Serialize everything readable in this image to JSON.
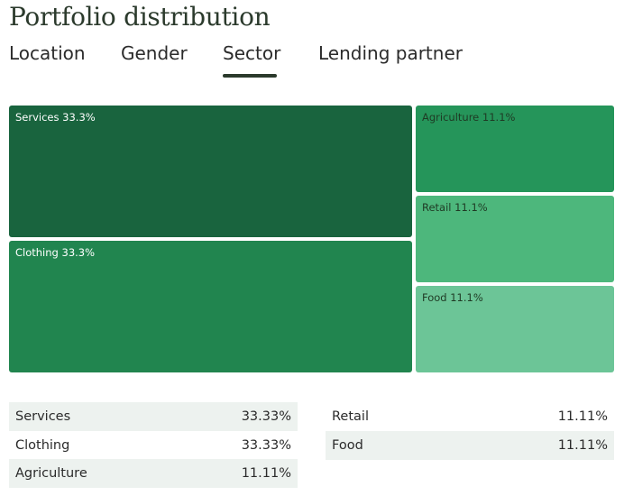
{
  "page": {
    "title": "Portfolio distribution"
  },
  "tabs": [
    {
      "label": "Location",
      "active": false
    },
    {
      "label": "Gender",
      "active": false
    },
    {
      "label": "Sector",
      "active": true
    },
    {
      "label": "Lending partner",
      "active": false
    }
  ],
  "chart_data": {
    "type": "treemap",
    "title": "Portfolio distribution",
    "categories": [
      "Services",
      "Clothing",
      "Agriculture",
      "Retail",
      "Food"
    ],
    "values": [
      33.3,
      33.3,
      11.1,
      11.1,
      11.1
    ],
    "labels": [
      "Services 33.3%",
      "Clothing 33.3%",
      "Agriculture 11.1%",
      "Retail 11.1%",
      "Food 11.1%"
    ],
    "colors": [
      "#19643e",
      "#21854f",
      "#25955a",
      "#4db77c",
      "#6cc597"
    ]
  },
  "table": {
    "rows": [
      {
        "name": "Services",
        "value": "33.33%"
      },
      {
        "name": "Clothing",
        "value": "33.33%"
      },
      {
        "name": "Agriculture",
        "value": "11.11%"
      },
      {
        "name": "Retail",
        "value": "11.11%"
      },
      {
        "name": "Food",
        "value": "11.11%"
      }
    ]
  }
}
